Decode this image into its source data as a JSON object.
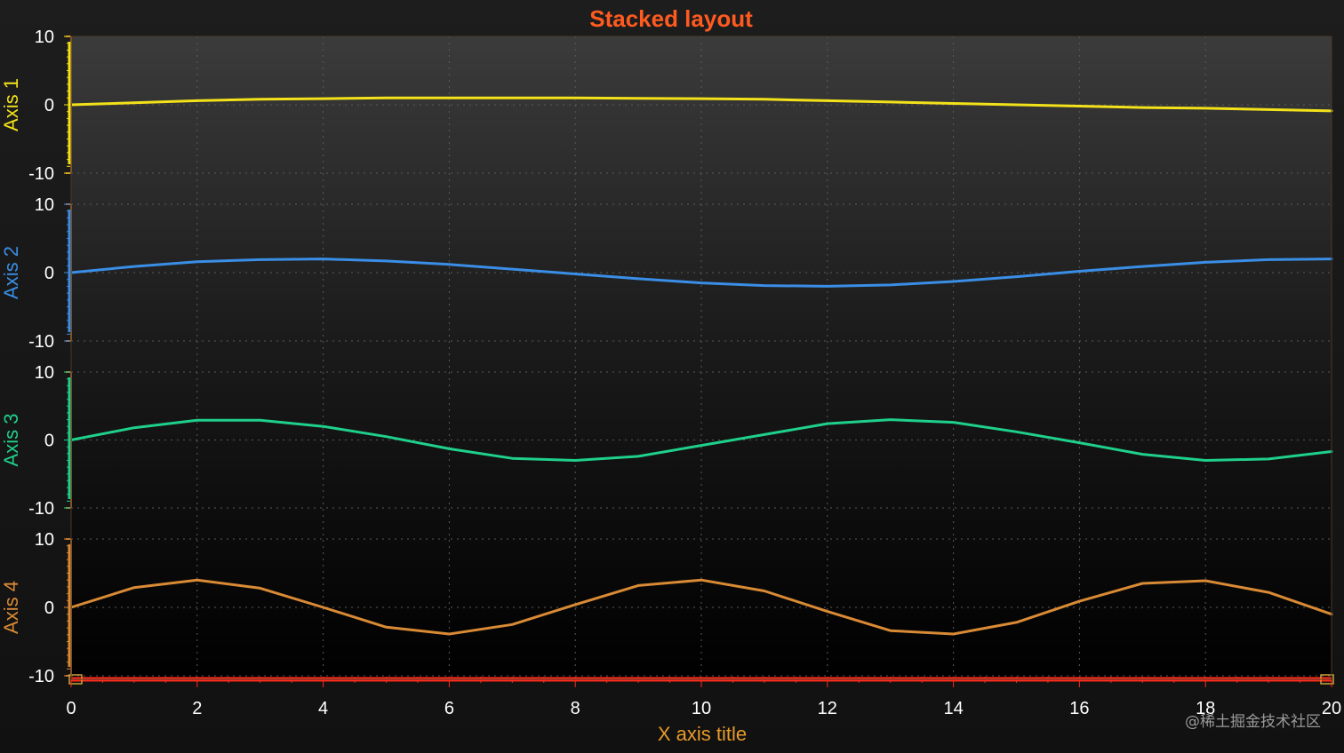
{
  "chart_data": {
    "type": "line",
    "title": "Stacked layout",
    "xlabel": "X axis title",
    "xlim": [
      0,
      20
    ],
    "x_ticks": [
      0,
      2,
      4,
      6,
      8,
      10,
      12,
      14,
      16,
      18,
      20
    ],
    "x": [
      0,
      1,
      2,
      3,
      4,
      5,
      6,
      7,
      8,
      9,
      10,
      11,
      12,
      13,
      14,
      15,
      16,
      17,
      18,
      19,
      20
    ],
    "grid": true,
    "stacked_axes": [
      {
        "name": "Axis 1",
        "color": "#f3e21a",
        "ylim": [
          -10,
          10
        ],
        "y_ticks": [
          -10,
          0,
          10
        ],
        "values": [
          0,
          0.3,
          0.6,
          0.8,
          0.9,
          1.0,
          1.0,
          1.0,
          1.0,
          0.95,
          0.9,
          0.8,
          0.6,
          0.4,
          0.2,
          0,
          -0.2,
          -0.4,
          -0.5,
          -0.7,
          -0.9
        ]
      },
      {
        "name": "Axis 2",
        "color": "#3a8ee6",
        "ylim": [
          -10,
          10
        ],
        "y_ticks": [
          -10,
          0,
          10
        ],
        "values": [
          0,
          0.9,
          1.6,
          1.9,
          2.0,
          1.7,
          1.2,
          0.5,
          -0.2,
          -0.9,
          -1.5,
          -1.9,
          -2.0,
          -1.8,
          -1.3,
          -0.6,
          0.2,
          0.9,
          1.5,
          1.9,
          2.0
        ]
      },
      {
        "name": "Axis 3",
        "color": "#1fd08b",
        "ylim": [
          -10,
          10
        ],
        "y_ticks": [
          -10,
          0,
          10
        ],
        "values": [
          0,
          1.8,
          2.9,
          2.9,
          2.0,
          0.5,
          -1.3,
          -2.7,
          -3.0,
          -2.4,
          -0.8,
          0.8,
          2.4,
          3.0,
          2.6,
          1.2,
          -0.4,
          -2.1,
          -3.0,
          -2.8,
          -1.7
        ]
      },
      {
        "name": "Axis 4",
        "color": "#d98a35",
        "ylim": [
          -10,
          10
        ],
        "y_ticks": [
          -10,
          0,
          10
        ],
        "values": [
          0,
          2.9,
          4.0,
          2.8,
          0,
          -2.9,
          -3.9,
          -2.5,
          0.4,
          3.2,
          4.0,
          2.4,
          -0.6,
          -3.4,
          -3.9,
          -2.2,
          0.9,
          3.5,
          3.9,
          2.2,
          -1.0
        ]
      }
    ],
    "colors": {
      "title": "#ff5a1f",
      "x_axis": "#ff2a1a",
      "x_axis_title": "#e89a2a",
      "frame": "#b5651d",
      "grid": "#5a5a5a"
    },
    "watermark": "@稀土掘金技术社区"
  }
}
